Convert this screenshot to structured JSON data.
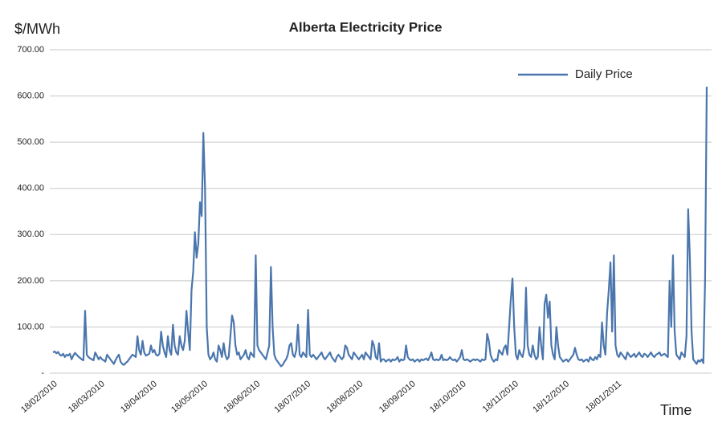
{
  "chart_data": {
    "type": "line",
    "title": "Alberta Electricity Price",
    "y_label": "$/MWh",
    "x_label": "Time",
    "categories": [
      "18/02/2010",
      null,
      null,
      null,
      null,
      null,
      null,
      null,
      null,
      null,
      null,
      null,
      null,
      null,
      null,
      null,
      null,
      null,
      null,
      null,
      null,
      null,
      null,
      null,
      null,
      null,
      null,
      null,
      "18/03/2010",
      null,
      null,
      null,
      null,
      null,
      null,
      null,
      null,
      null,
      null,
      null,
      null,
      null,
      null,
      null,
      null,
      null,
      null,
      null,
      null,
      null,
      null,
      null,
      null,
      null,
      null,
      null,
      null,
      null,
      null,
      "18/04/2010",
      null,
      null,
      null,
      null,
      null,
      null,
      null,
      null,
      null,
      null,
      null,
      null,
      null,
      null,
      null,
      null,
      null,
      null,
      null,
      null,
      null,
      null,
      null,
      null,
      null,
      null,
      null,
      null,
      null,
      "18/05/2010",
      null,
      null,
      null,
      null,
      null,
      null,
      null,
      null,
      null,
      null,
      null,
      null,
      null,
      null,
      null,
      null,
      null,
      null,
      null,
      null,
      null,
      null,
      null,
      null,
      null,
      null,
      null,
      null,
      null,
      null,
      "18/06/2010",
      null,
      null,
      null,
      null,
      null,
      null,
      null,
      null,
      null,
      null,
      null,
      null,
      null,
      null,
      null,
      null,
      null,
      null,
      null,
      null,
      null,
      null,
      null,
      null,
      null,
      null,
      null,
      null,
      null,
      "18/07/2010",
      null,
      null,
      null,
      null,
      null,
      null,
      null,
      null,
      null,
      null,
      null,
      null,
      null,
      null,
      null,
      null,
      null,
      null,
      null,
      null,
      null,
      null,
      null,
      null,
      null,
      null,
      null,
      null,
      null,
      null,
      "18/08/2010",
      null,
      null,
      null,
      null,
      null,
      null,
      null,
      null,
      null,
      null,
      null,
      null,
      null,
      null,
      null,
      null,
      null,
      null,
      null,
      null,
      null,
      null,
      null,
      null,
      null,
      null,
      null,
      null,
      null,
      null,
      "18/09/2010",
      null,
      null,
      null,
      null,
      null,
      null,
      null,
      null,
      null,
      null,
      null,
      null,
      null,
      null,
      null,
      null,
      null,
      null,
      null,
      null,
      null,
      null,
      null,
      null,
      null,
      null,
      null,
      null,
      null,
      "18/10/2010",
      null,
      null,
      null,
      null,
      null,
      null,
      null,
      null,
      null,
      null,
      null,
      null,
      null,
      null,
      null,
      null,
      null,
      null,
      null,
      null,
      null,
      null,
      null,
      null,
      null,
      null,
      null,
      null,
      null,
      null,
      "18/11/2010",
      null,
      null,
      null,
      null,
      null,
      null,
      null,
      null,
      null,
      null,
      null,
      null,
      null,
      null,
      null,
      null,
      null,
      null,
      null,
      null,
      null,
      null,
      null,
      null,
      null,
      null,
      null,
      null,
      null,
      "18/12/2010",
      null,
      null,
      null,
      null,
      null,
      null,
      null,
      null,
      null,
      null,
      null,
      null,
      null,
      null,
      null,
      null,
      null,
      null,
      null,
      null,
      null,
      null,
      null,
      null,
      null,
      null,
      null,
      null,
      null,
      null,
      "18/01/2011",
      null,
      null,
      null,
      null,
      null,
      null,
      null,
      null,
      null,
      null,
      null,
      null,
      null,
      null,
      null,
      null,
      null,
      null,
      null,
      null,
      null,
      null,
      null,
      null,
      null,
      null,
      null,
      null,
      null,
      null,
      null,
      null,
      null,
      null,
      null,
      null,
      null,
      null,
      null,
      null,
      null,
      null,
      null,
      null,
      null,
      null,
      null,
      null,
      null,
      null,
      null,
      null,
      null
    ],
    "series": [
      {
        "name": "Daily Price",
        "color": "#4a76ad",
        "values": [
          45,
          47,
          43,
          46,
          40,
          38,
          42,
          35,
          40,
          38,
          42,
          30,
          38,
          44,
          40,
          36,
          33,
          30,
          28,
          135,
          40,
          35,
          32,
          30,
          28,
          45,
          38,
          30,
          35,
          30,
          28,
          25,
          40,
          35,
          30,
          25,
          20,
          28,
          35,
          40,
          25,
          20,
          18,
          22,
          25,
          30,
          35,
          40,
          38,
          35,
          80,
          50,
          40,
          70,
          45,
          38,
          40,
          42,
          60,
          45,
          50,
          40,
          38,
          42,
          90,
          60,
          45,
          35,
          80,
          50,
          40,
          105,
          60,
          45,
          40,
          80,
          60,
          50,
          70,
          135,
          90,
          50,
          180,
          220,
          305,
          250,
          280,
          370,
          340,
          520,
          400,
          100,
          40,
          30,
          35,
          45,
          30,
          25,
          60,
          50,
          35,
          65,
          40,
          30,
          35,
          80,
          125,
          110,
          60,
          40,
          45,
          30,
          35,
          40,
          50,
          35,
          30,
          45,
          40,
          35,
          255,
          60,
          50,
          45,
          40,
          35,
          30,
          45,
          60,
          230,
          100,
          40,
          30,
          25,
          20,
          15,
          18,
          25,
          30,
          40,
          60,
          65,
          40,
          35,
          50,
          105,
          40,
          35,
          45,
          40,
          35,
          137,
          40,
          35,
          40,
          35,
          30,
          35,
          40,
          45,
          35,
          30,
          35,
          40,
          45,
          35,
          30,
          25,
          35,
          40,
          35,
          30,
          35,
          60,
          55,
          40,
          35,
          30,
          45,
          40,
          35,
          30,
          35,
          40,
          30,
          45,
          40,
          35,
          30,
          70,
          60,
          35,
          30,
          65,
          25,
          30,
          30,
          25,
          28,
          30,
          25,
          30,
          28,
          30,
          35,
          25,
          30,
          28,
          30,
          60,
          35,
          30,
          28,
          30,
          25,
          28,
          30,
          25,
          30,
          28,
          30,
          32,
          28,
          35,
          45,
          30,
          28,
          30,
          28,
          30,
          40,
          28,
          30,
          28,
          30,
          35,
          30,
          28,
          30,
          25,
          30,
          35,
          50,
          30,
          28,
          30,
          28,
          25,
          28,
          30,
          28,
          30,
          28,
          25,
          30,
          28,
          30,
          85,
          70,
          40,
          30,
          25,
          30,
          28,
          50,
          45,
          40,
          55,
          60,
          40,
          100,
          160,
          205,
          100,
          40,
          30,
          50,
          40,
          35,
          55,
          185,
          60,
          40,
          35,
          60,
          40,
          30,
          35,
          100,
          60,
          30,
          150,
          170,
          120,
          155,
          60,
          40,
          30,
          100,
          60,
          35,
          30,
          25,
          28,
          30,
          25,
          30,
          35,
          40,
          55,
          40,
          30,
          28,
          30,
          25,
          28,
          30,
          25,
          35,
          30,
          28,
          35,
          30,
          40,
          35,
          110,
          60,
          40,
          130,
          180,
          240,
          90,
          255,
          60,
          40,
          35,
          45,
          40,
          35,
          30,
          45,
          40,
          35,
          38,
          42,
          35,
          40,
          45,
          38,
          35,
          42,
          40,
          35,
          40,
          45,
          38,
          35,
          40,
          42,
          45,
          38,
          40,
          42,
          38,
          35,
          200,
          100,
          255,
          90,
          40,
          35,
          30,
          45,
          40,
          35,
          80,
          355,
          250,
          90,
          30,
          25,
          20,
          28,
          25,
          30,
          22,
          200,
          620
        ]
      }
    ],
    "ylim": [
      0,
      700
    ],
    "yticks": [
      {
        "value": 0,
        "label": "-"
      },
      {
        "value": 100,
        "label": "100.00"
      },
      {
        "value": 200,
        "label": "200.00"
      },
      {
        "value": 300,
        "label": "300.00"
      },
      {
        "value": 400,
        "label": "400.00"
      },
      {
        "value": 500,
        "label": "500.00"
      },
      {
        "value": 600,
        "label": "600.00"
      },
      {
        "value": 700,
        "label": "700.00"
      }
    ],
    "grid": true,
    "legend": "top-right"
  }
}
